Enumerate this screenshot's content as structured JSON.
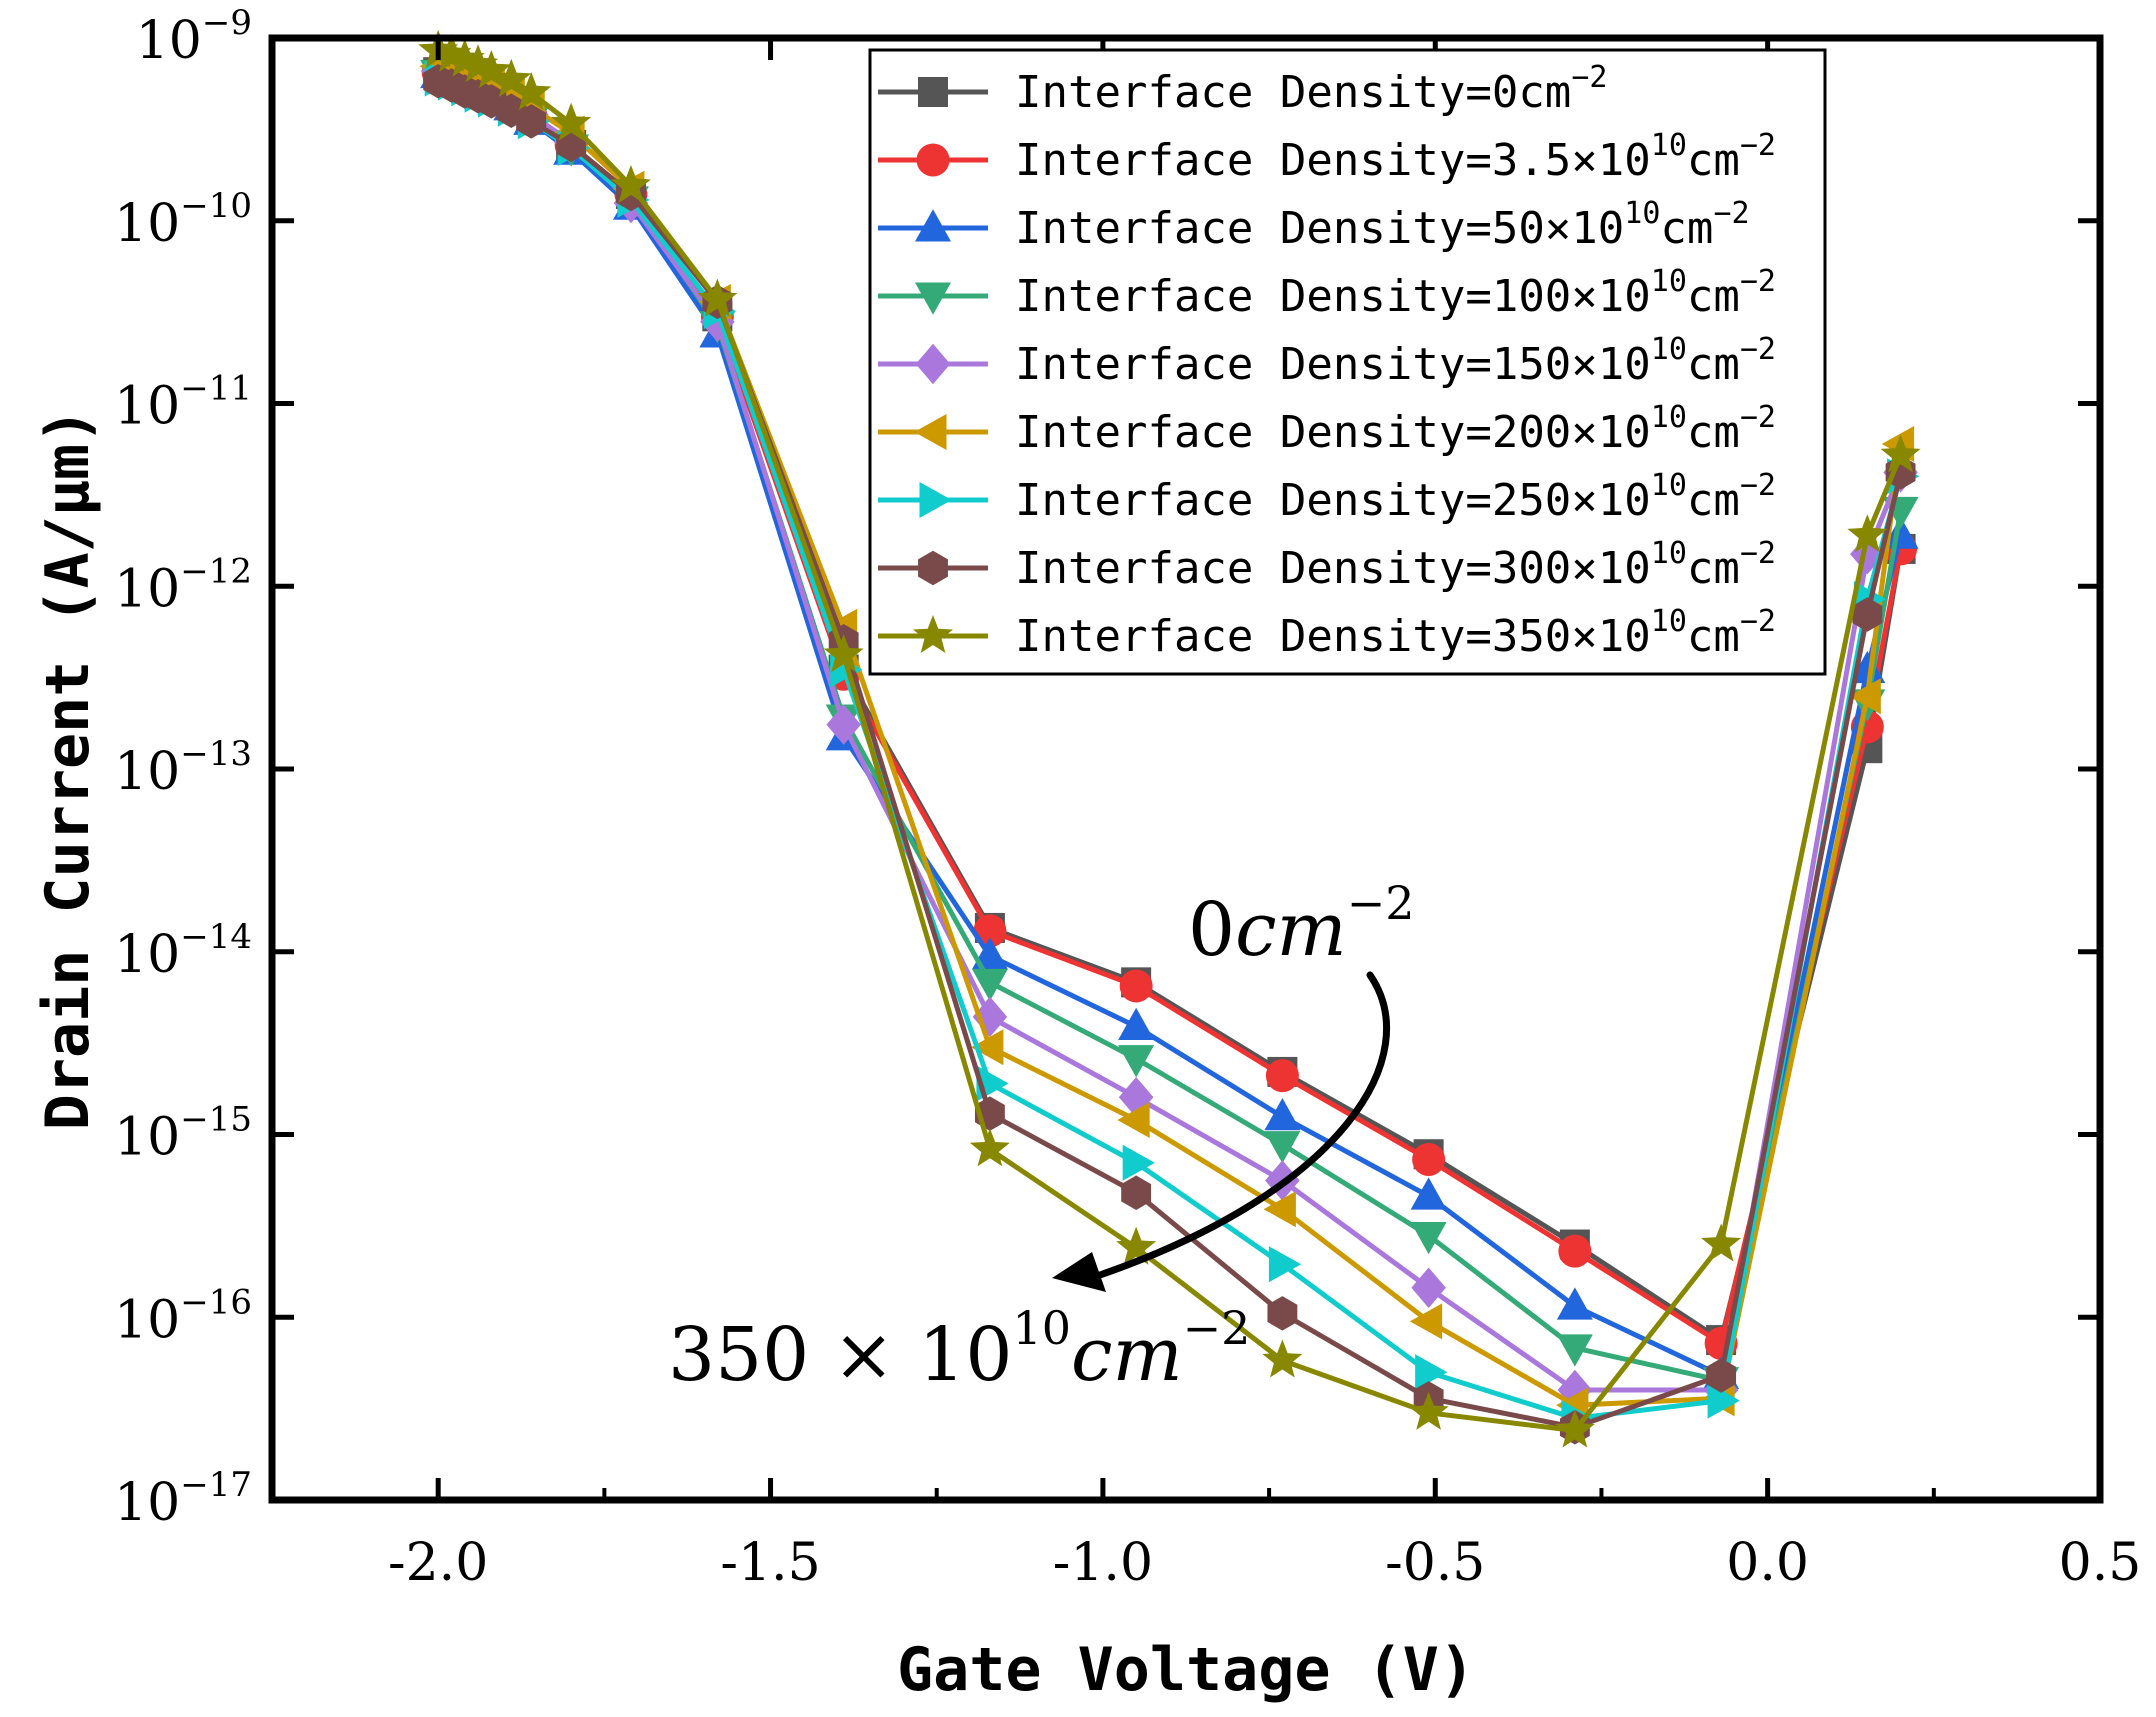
{
  "chart_data": {
    "type": "line",
    "title": "",
    "xlabel": "Gate Voltage (V)",
    "ylabel": "Drain Current (A/μm)",
    "xlim": [
      -2.25,
      0.5
    ],
    "ylim": [
      1e-17,
      1e-09
    ],
    "yscale": "log",
    "xticks": [
      "-2.0",
      "-1.5",
      "-1.0",
      "-0.5",
      "0.0",
      "0.5"
    ],
    "xtick_values": [
      -2.0,
      -1.5,
      -1.0,
      -0.5,
      0.0,
      0.5
    ],
    "yticks": [
      {
        "base": "10",
        "exp": "−9",
        "value": 1e-09
      },
      {
        "base": "10",
        "exp": "−10",
        "value": 1e-10
      },
      {
        "base": "10",
        "exp": "−11",
        "value": 1e-11
      },
      {
        "base": "10",
        "exp": "−12",
        "value": 1e-12
      },
      {
        "base": "10",
        "exp": "−13",
        "value": 1e-13
      },
      {
        "base": "10",
        "exp": "−14",
        "value": 1e-14
      },
      {
        "base": "10",
        "exp": "−15",
        "value": 1e-15
      },
      {
        "base": "10",
        "exp": "−16",
        "value": 1e-16
      },
      {
        "base": "10",
        "exp": "−17",
        "value": 1e-17
      }
    ],
    "legend_position": "top-right",
    "x": [
      -2.0,
      -1.98,
      -1.96,
      -1.94,
      -1.92,
      -1.89,
      -1.86,
      -1.8,
      -1.71,
      -1.58,
      -1.39,
      -1.17,
      -0.95,
      -0.73,
      -0.51,
      -0.29,
      -0.07,
      0.15,
      0.2
    ],
    "series": [
      {
        "name": "Interface Density=0cm",
        "sup": "−2",
        "color": "#555555",
        "marker": "square",
        "values": [
          6.5e-10,
          6.2e-10,
          5.8e-10,
          5.4e-10,
          5e-10,
          4.4e-10,
          3.7e-10,
          2.6e-10,
          1.4e-10,
          3e-11,
          3.5e-13,
          1.35e-14,
          6.8e-15,
          2.2e-15,
          7.8e-16,
          2.5e-16,
          7.5e-17,
          1.3e-13,
          1.6e-12
        ]
      },
      {
        "name": "Interface Density=3.5×10",
        "sup2": "10",
        "unit": "cm",
        "sup": "−2",
        "color": "#ee3333",
        "marker": "circle",
        "values": [
          6.5e-10,
          6.2e-10,
          5.8e-10,
          5.4e-10,
          5e-10,
          4.4e-10,
          3.7e-10,
          2.6e-10,
          1.4e-10,
          3e-11,
          3.3e-13,
          1.3e-14,
          6.5e-15,
          2.1e-15,
          7.3e-16,
          2.3e-16,
          7.2e-17,
          1.7e-13,
          1.6e-12
        ]
      },
      {
        "name": "Interface Density=50×10",
        "sup2": "10",
        "unit": "cm",
        "sup": "−2",
        "color": "#2266dd",
        "marker": "triangle-up",
        "values": [
          6.3e-10,
          6e-10,
          5.6e-10,
          5.2e-10,
          4.8e-10,
          4.2e-10,
          3.5e-10,
          2.4e-10,
          1.2e-10,
          2.4e-11,
          1.5e-13,
          9.5e-15,
          3.9e-15,
          1.25e-15,
          4.6e-16,
          1.15e-16,
          4.8e-17,
          3.5e-13,
          1.9e-12
        ]
      },
      {
        "name": "Interface Density=100×10",
        "sup2": "10",
        "unit": "cm",
        "sup": "−2",
        "color": "#33aa77",
        "marker": "triangle-down",
        "values": [
          6.4e-10,
          6.1e-10,
          5.7e-10,
          5.3e-10,
          4.9e-10,
          4.3e-10,
          3.6e-10,
          2.5e-10,
          1.3e-10,
          2.7e-11,
          1.9e-13,
          6.8e-15,
          2.6e-15,
          8.8e-16,
          2.8e-16,
          6.8e-17,
          4.5e-17,
          2.3e-13,
          2.6e-12
        ]
      },
      {
        "name": "Interface Density=150×10",
        "sup2": "10",
        "unit": "cm",
        "sup": "−2",
        "color": "#aa77dd",
        "marker": "diamond",
        "values": [
          6.6e-10,
          6.3e-10,
          5.9e-10,
          5.5e-10,
          5.1e-10,
          4.5e-10,
          3.8e-10,
          2.7e-10,
          1.25e-10,
          2.8e-11,
          1.75e-13,
          4.4e-15,
          1.6e-15,
          5.6e-16,
          1.45e-16,
          4e-17,
          4e-17,
          1.5e-12,
          4.2e-12
        ]
      },
      {
        "name": "Interface Density=200×10",
        "sup2": "10",
        "unit": "cm",
        "sup": "−2",
        "color": "#cc9900",
        "marker": "triangle-left",
        "values": [
          7e-10,
          6.7e-10,
          6.3e-10,
          5.9e-10,
          5.5e-10,
          4.9e-10,
          4.2e-10,
          3e-10,
          1.5e-10,
          3.6e-11,
          6e-13,
          3e-15,
          1.2e-15,
          3.9e-16,
          9.5e-17,
          3.3e-17,
          3.6e-17,
          2.5e-13,
          6e-12
        ]
      },
      {
        "name": "Interface Density=250×10",
        "sup2": "10",
        "unit": "cm",
        "sup": "−2",
        "color": "#11cccc",
        "marker": "triangle-right",
        "values": [
          6e-10,
          5.7e-10,
          5.3e-10,
          4.9e-10,
          4.6e-10,
          4.1e-10,
          3.5e-10,
          2.5e-10,
          1.3e-10,
          3.2e-11,
          3.5e-13,
          1.9e-15,
          7e-16,
          1.95e-16,
          5e-17,
          2.8e-17,
          3.5e-17,
          8.5e-13,
          4e-12
        ]
      },
      {
        "name": "Interface Density=300×10",
        "sup2": "10",
        "unit": "cm",
        "sup": "−2",
        "color": "#7a4a4a",
        "marker": "hexagon",
        "values": [
          5.8e-10,
          5.5e-10,
          5.1e-10,
          4.8e-10,
          4.5e-10,
          4e-10,
          3.5e-10,
          2.6e-10,
          1.4e-10,
          3.6e-11,
          5e-13,
          1.3e-15,
          4.8e-16,
          1.05e-16,
          3.6e-17,
          2.5e-17,
          4.8e-17,
          7e-13,
          4.2e-12
        ]
      },
      {
        "name": "Interface Density=350×10",
        "sup2": "10",
        "unit": "cm",
        "sup": "−2",
        "color": "#888800",
        "marker": "star",
        "values": [
          8.5e-10,
          8.1e-10,
          7.6e-10,
          7.1e-10,
          6.6e-10,
          5.9e-10,
          5e-10,
          3.4e-10,
          1.55e-10,
          3.7e-11,
          4.2e-13,
          8.3e-16,
          2.4e-16,
          5.8e-17,
          3e-17,
          2.4e-17,
          2.5e-16,
          1.9e-12,
          5.2e-12
        ]
      }
    ],
    "annotations": {
      "top_label": {
        "base": "0",
        "unit": "cm",
        "sup": "−2"
      },
      "bottom_label": {
        "base": "350 × 10",
        "sup1": "10",
        "unit": "cm",
        "sup": "−2"
      }
    }
  }
}
